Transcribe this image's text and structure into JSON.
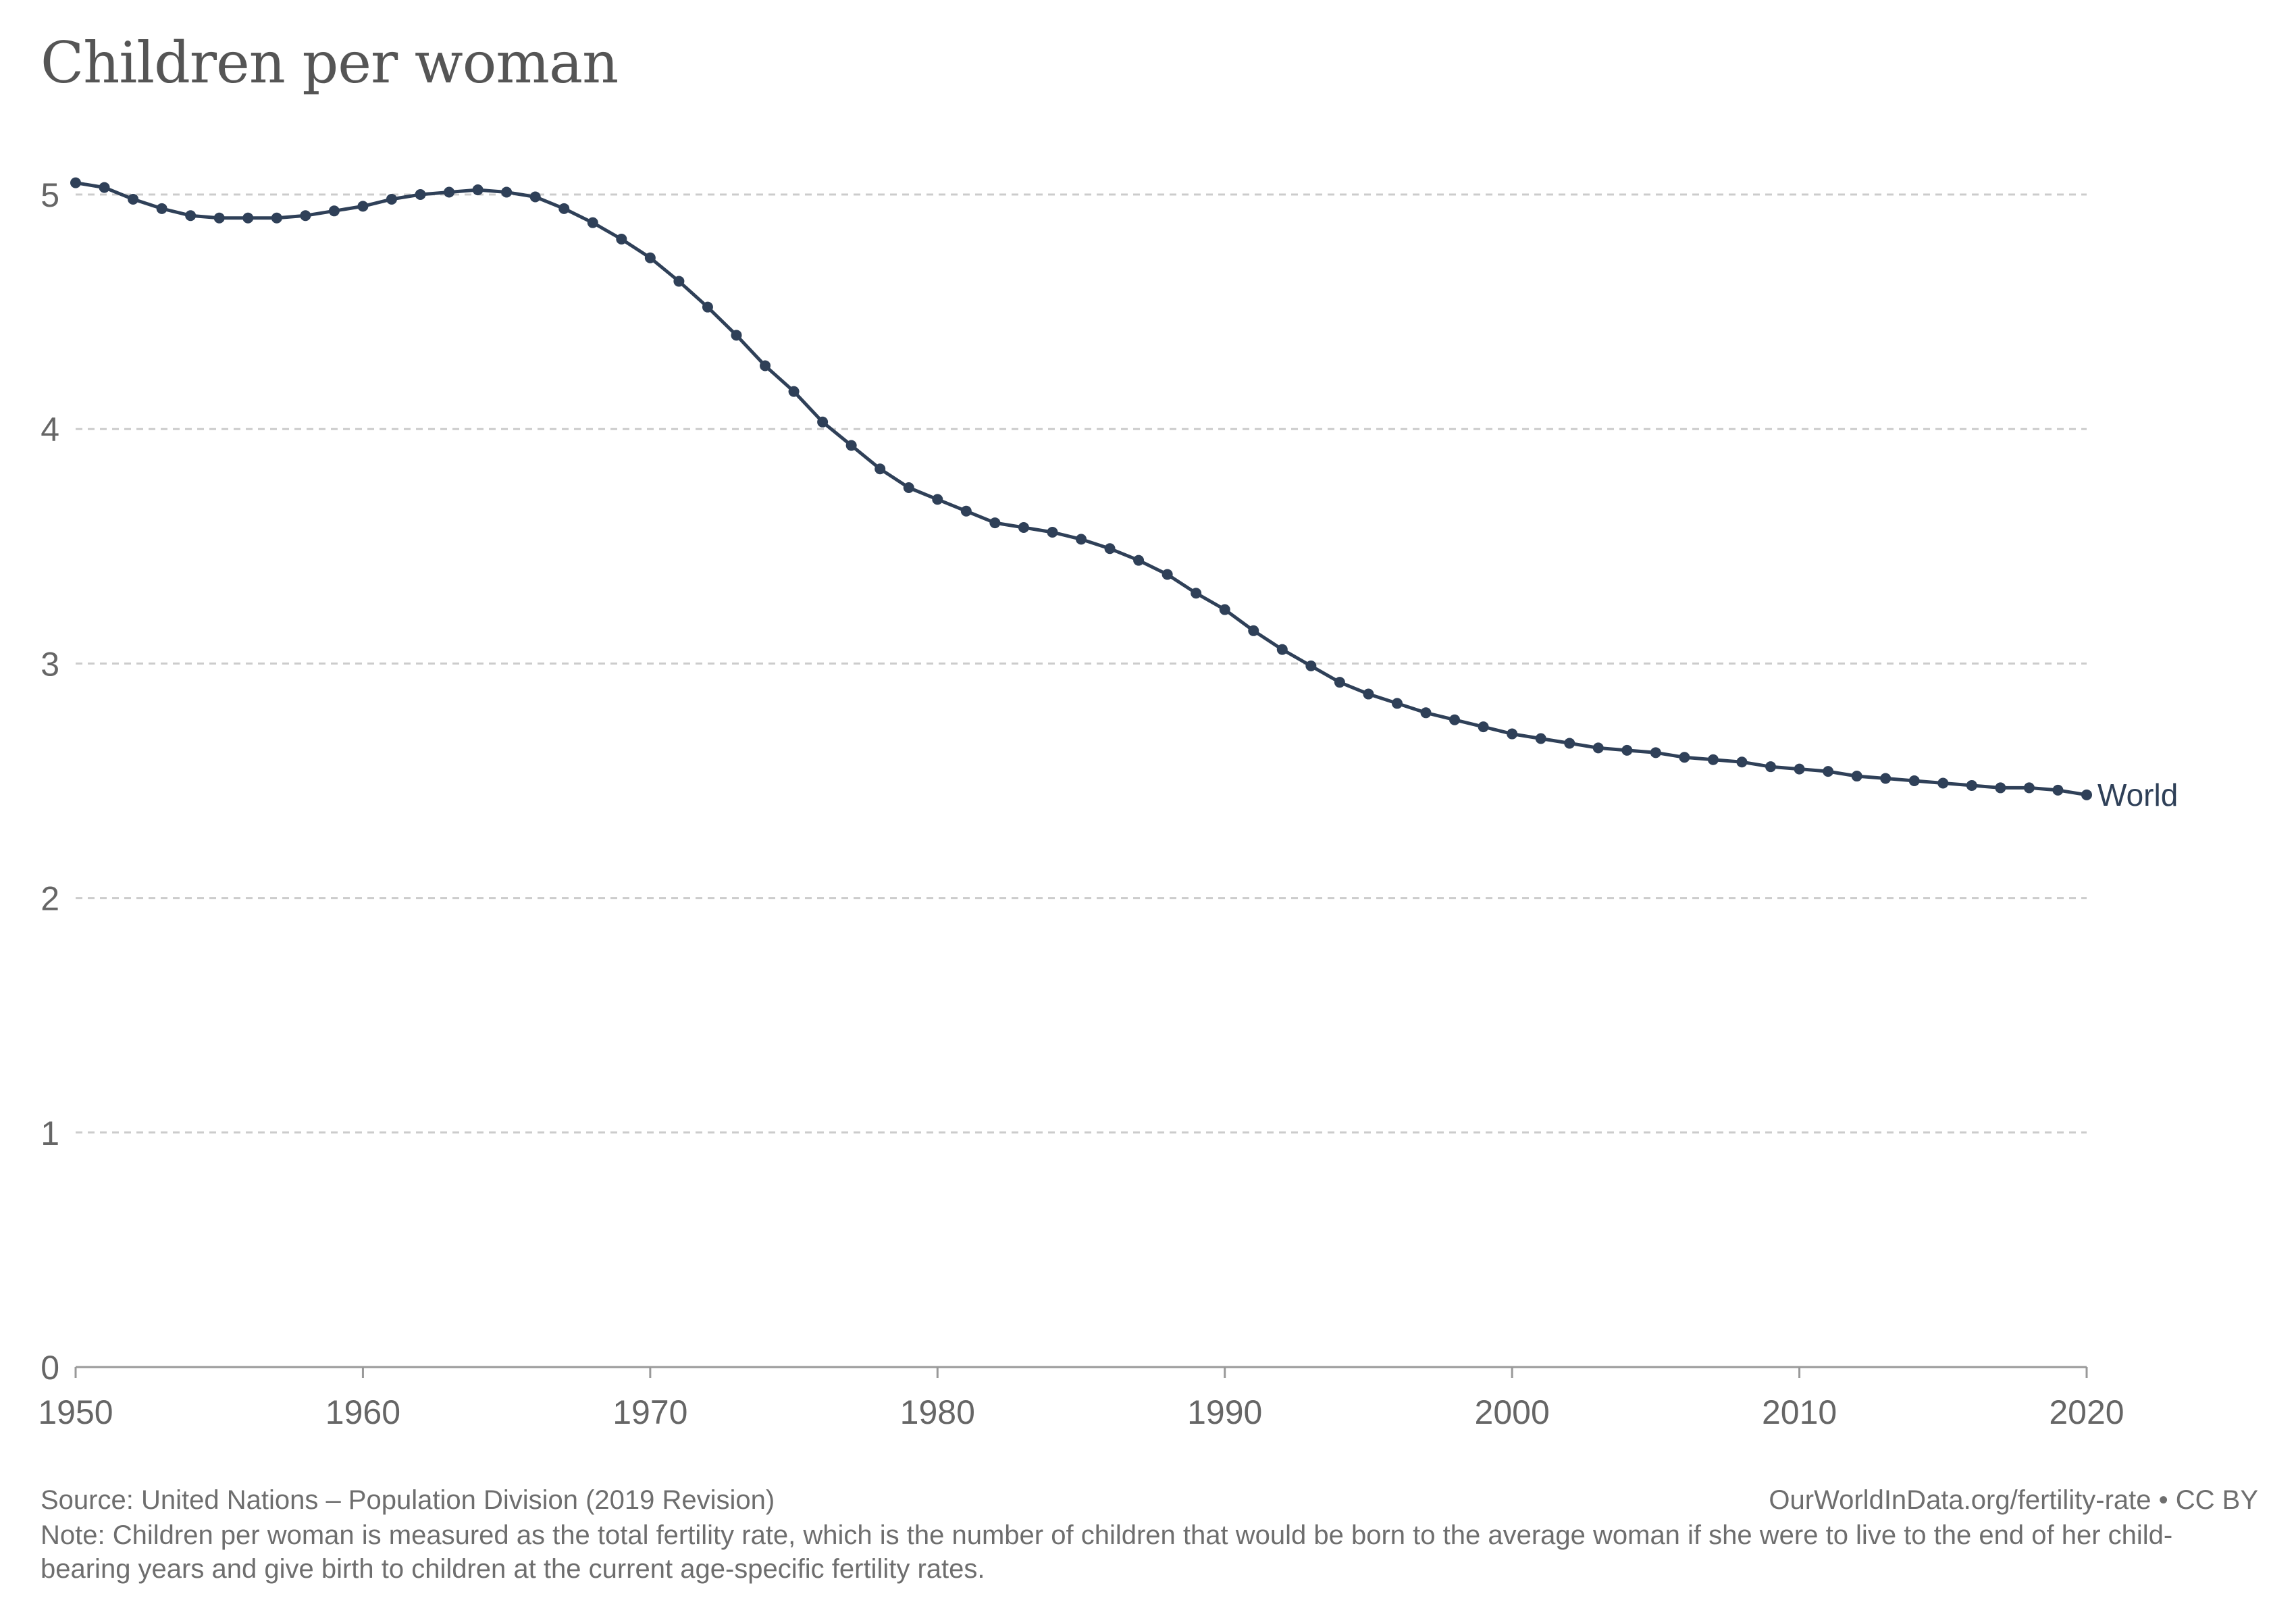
{
  "title": "Children per woman",
  "footer": {
    "source": "Source: United Nations – Population Division (2019 Revision)",
    "credit": "OurWorldInData.org/fertility-rate • CC BY",
    "note": "Note: Children per woman is measured as the total fertility rate, which is the number of children that would be born to the average woman if she were to live to the end of her child-bearing years and give birth to children at the current age-specific fertility rates."
  },
  "colors": {
    "series": "#2f4058",
    "grid": "#cccccc",
    "axis": "#999999",
    "text": "#666666"
  },
  "chart_data": {
    "type": "line",
    "title": "Children per woman",
    "xlabel": "",
    "ylabel": "",
    "xlim": [
      1950,
      2020
    ],
    "ylim": [
      0,
      5
    ],
    "x_ticks": [
      "1950",
      "1960",
      "1970",
      "1980",
      "1990",
      "2000",
      "2010",
      "2020"
    ],
    "y_ticks": [
      "0",
      "1",
      "2",
      "3",
      "4",
      "5"
    ],
    "grid": "horizontal dashed",
    "legend": "inline label at line end",
    "series": [
      {
        "name": "World",
        "x": [
          1950,
          1951,
          1952,
          1953,
          1954,
          1955,
          1956,
          1957,
          1958,
          1959,
          1960,
          1961,
          1962,
          1963,
          1964,
          1965,
          1966,
          1967,
          1968,
          1969,
          1970,
          1971,
          1972,
          1973,
          1974,
          1975,
          1976,
          1977,
          1978,
          1979,
          1980,
          1981,
          1982,
          1983,
          1984,
          1985,
          1986,
          1987,
          1988,
          1989,
          1990,
          1991,
          1992,
          1993,
          1994,
          1995,
          1996,
          1997,
          1998,
          1999,
          2000,
          2001,
          2002,
          2003,
          2004,
          2005,
          2006,
          2007,
          2008,
          2009,
          2010,
          2011,
          2012,
          2013,
          2014,
          2015,
          2016,
          2017,
          2018,
          2019,
          2020
        ],
        "y": [
          5.05,
          5.03,
          4.98,
          4.94,
          4.91,
          4.9,
          4.9,
          4.9,
          4.91,
          4.93,
          4.95,
          4.98,
          5.0,
          5.01,
          5.02,
          5.01,
          4.99,
          4.94,
          4.88,
          4.81,
          4.73,
          4.63,
          4.52,
          4.4,
          4.27,
          4.16,
          4.03,
          3.93,
          3.83,
          3.75,
          3.7,
          3.65,
          3.6,
          3.58,
          3.56,
          3.53,
          3.49,
          3.44,
          3.38,
          3.3,
          3.23,
          3.14,
          3.06,
          2.99,
          2.92,
          2.87,
          2.83,
          2.79,
          2.76,
          2.73,
          2.7,
          2.68,
          2.66,
          2.64,
          2.63,
          2.62,
          2.6,
          2.59,
          2.58,
          2.56,
          2.55,
          2.54,
          2.52,
          2.51,
          2.5,
          2.49,
          2.48,
          2.47,
          2.47,
          2.46,
          2.44
        ]
      }
    ]
  }
}
